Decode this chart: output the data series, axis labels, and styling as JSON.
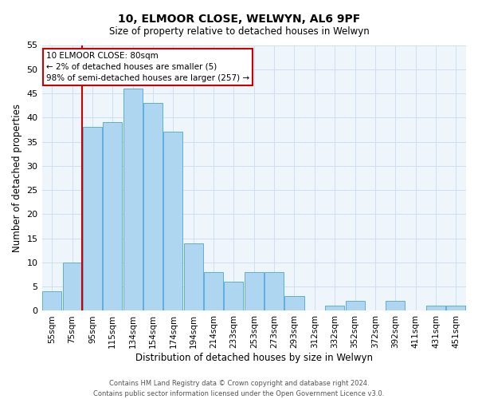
{
  "title": "10, ELMOOR CLOSE, WELWYN, AL6 9PF",
  "subtitle": "Size of property relative to detached houses in Welwyn",
  "xlabel": "Distribution of detached houses by size in Welwyn",
  "ylabel": "Number of detached properties",
  "bar_labels": [
    "55sqm",
    "75sqm",
    "95sqm",
    "115sqm",
    "134sqm",
    "154sqm",
    "174sqm",
    "194sqm",
    "214sqm",
    "233sqm",
    "253sqm",
    "273sqm",
    "293sqm",
    "312sqm",
    "332sqm",
    "352sqm",
    "372sqm",
    "392sqm",
    "411sqm",
    "431sqm",
    "451sqm"
  ],
  "bar_values": [
    4,
    10,
    38,
    39,
    46,
    43,
    37,
    14,
    8,
    6,
    8,
    8,
    3,
    0,
    1,
    2,
    0,
    2,
    0,
    1,
    1
  ],
  "bar_color": "#aed6f1",
  "bar_edge_color": "#5dade2",
  "ylim": [
    0,
    55
  ],
  "yticks": [
    0,
    5,
    10,
    15,
    20,
    25,
    30,
    35,
    40,
    45,
    50,
    55
  ],
  "vline_x": 1.5,
  "vline_color": "#cc0000",
  "annotation_title": "10 ELMOOR CLOSE: 80sqm",
  "annotation_line1": "← 2% of detached houses are smaller (5)",
  "annotation_line2": "98% of semi-detached houses are larger (257) →",
  "annotation_box_color": "#ffffff",
  "annotation_border_color": "#cc0000",
  "footer_line1": "Contains HM Land Registry data © Crown copyright and database right 2024.",
  "footer_line2": "Contains public sector information licensed under the Open Government Licence v3.0.",
  "background_color": "#eef5fb",
  "grid_color": "#ccdff0"
}
